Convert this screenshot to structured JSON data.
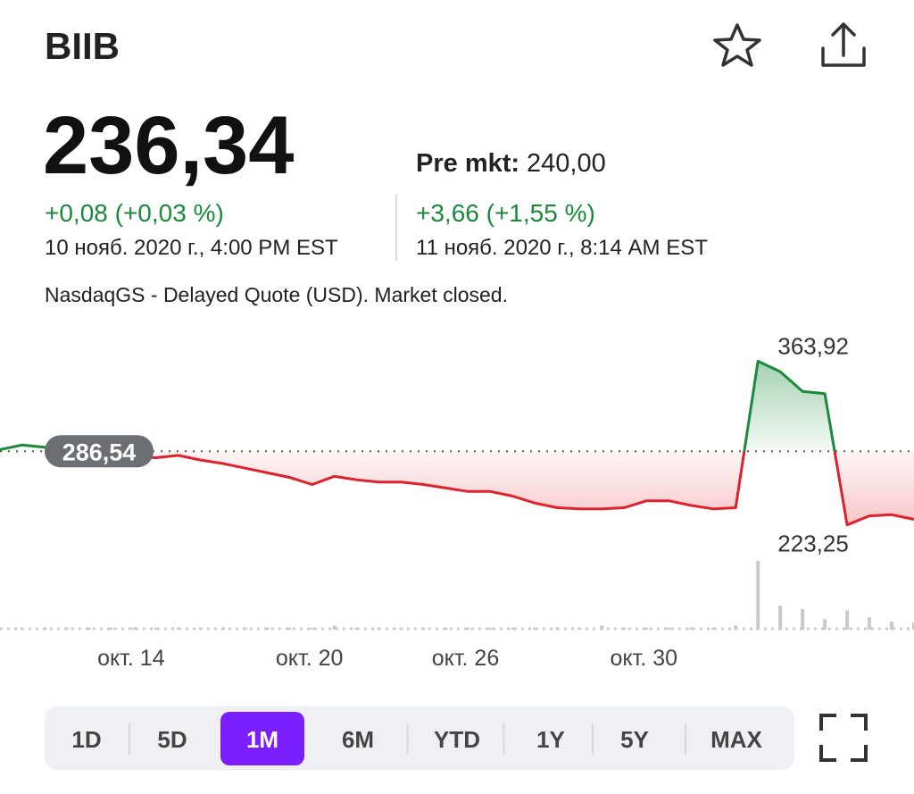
{
  "header": {
    "ticker": "BIIB"
  },
  "quote": {
    "price": "236,34",
    "pre_market_label": "Pre mkt:",
    "pre_market_price": "240,00",
    "change": "+0,08 (+0,03 %)",
    "close_time": "10 нояб. 2020 г., 4:00 PM EST",
    "pre_market_change": "+3,66 (+1,55 %)",
    "pre_market_time": "11 нояб. 2020 г., 8:14 AM EST",
    "note": "NasdaqGS - Delayed Quote (USD). Market closed."
  },
  "chart": {
    "type": "line",
    "categories": [
      null,
      null,
      null,
      null,
      null,
      null,
      "окт. 14",
      null,
      null,
      null,
      null,
      null,
      null,
      null,
      "окт. 20",
      null,
      null,
      null,
      null,
      null,
      null,
      "окт. 26",
      null,
      null,
      null,
      null,
      null,
      null,
      null,
      "окт. 30",
      null,
      null,
      null,
      null,
      null,
      null,
      null,
      null,
      null,
      null,
      null,
      null
    ],
    "values": [
      288,
      292,
      290,
      285,
      282,
      282,
      282,
      281,
      283,
      279,
      276,
      272,
      268,
      264,
      258,
      265,
      262,
      260,
      260,
      258,
      255,
      252,
      252,
      248,
      242,
      238,
      237,
      237,
      238,
      244,
      244,
      240,
      237,
      238,
      363.92,
      355,
      338,
      336,
      223.25,
      231,
      232,
      228
    ],
    "ylim": [
      210,
      375
    ],
    "reference": {
      "value": 286.54,
      "label": "286,54"
    },
    "high": {
      "value": 363.92,
      "label": "363,92"
    },
    "low": {
      "value": 223.25,
      "label": "223,25"
    },
    "up_color": "#1a8a3a",
    "down_color": "#e0202a",
    "volume": {
      "values": [
        3,
        3,
        3,
        3,
        3,
        3,
        3,
        3,
        3,
        3,
        3,
        3,
        3,
        3,
        3,
        6,
        3,
        3,
        3,
        3,
        3,
        3,
        3,
        3,
        3,
        3,
        3,
        6,
        3,
        3,
        3,
        3,
        3,
        6,
        100,
        35,
        30,
        15,
        28,
        18,
        12,
        10
      ],
      "ylim": [
        0,
        100
      ],
      "color": "#c9cacd"
    }
  },
  "range_selector": {
    "options": [
      "1D",
      "5D",
      "1M",
      "6M",
      "YTD",
      "1Y",
      "5Y",
      "MAX"
    ],
    "selected": 2
  }
}
